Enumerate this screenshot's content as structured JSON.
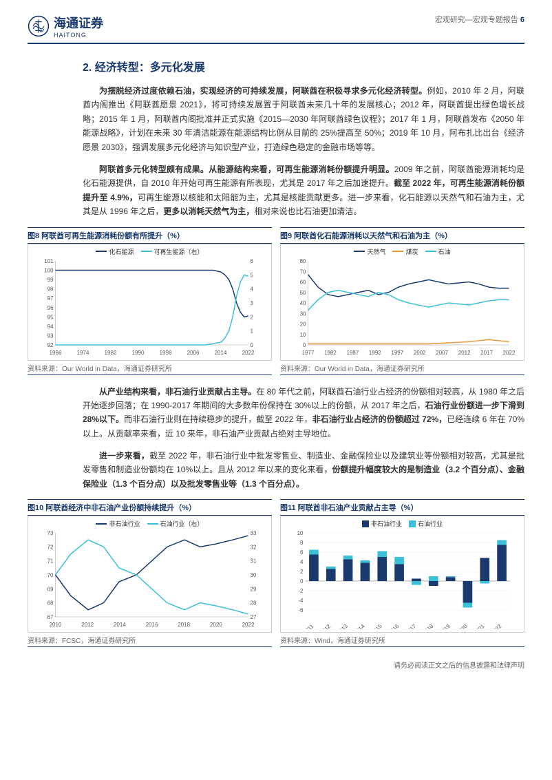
{
  "header": {
    "logo_text": "海通证券",
    "logo_sub": "HAITONG",
    "category": "宏观研究—宏观专题报告",
    "page_num": "6"
  },
  "heading2": "2. 经济转型：多元化发展",
  "para1_bold": "为摆脱经济过度依赖石油，实现经济的可持续发展，阿联酋在积极寻求多元化经济转型。",
  "para1_rest": "例如，2010 年 2 月，阿联酋内阁推出《阿联酋愿景 2021》，将可持续发展置于阿联酋未来几十年的发展核心；2012 年，阿联酋提出绿色增长战略；2015 年 1 月，阿联酋内阁批准并正式实施《2015—2030 年阿联酋绿色议程》；2017 年 1 月，阿联酋发布《2050 年能源战略》，计划在未来 30 年清洁能源在能源结构比例从目前的 25%提高至 50%；2019 年 10 月，阿布扎比出台《经济愿景 2030》，强调发展多元化经济与知识型产业，打造绿色稳定的金融市场等等。",
  "para2_bold1": "阿联酋多元化转型颇有成果。从能源结构来看，可再生能源消耗份额提升明显。",
  "para2_mid": "2009 年之前，阿联酋能源消耗均是化石能源提供，自 2010 年开始可再生能源有所表现，尤其是 2017 年之后加速提升。",
  "para2_bold2": "截至 2022 年，可再生能源消耗份额提升至 4.9%，",
  "para2_rest": "可再生能源以核能和太阳能为主，尤其是核能贡献更多。进一步来看，化石能源以天然气和石油为主，尤其是从 1996 年之后，",
  "para2_bold3": "更多以消耗天然气为主，",
  "para2_tail": "相对来说也比石油更加清洁。",
  "para3_bold": "从产业结构来看，非石油行业贡献占主导。",
  "para3_rest": "在 80 年代之前，阿联酋石油行业占经济的份额相对较高，从 1980 年之后开始逐步回落；在 1990-2017 年期间的大多数年份保持在 30%以上的份额，从 2017 年之后，",
  "para3_bold2": "石油行业份额进一步下滑到 28%以下。",
  "para3_rest2": "而非石油行业则在持续稳步的提升，截至 2022 年，",
  "para3_bold3": "非石油行业占经济的份额超过 72%，",
  "para3_tail": "已经连续 6 年在 70%以上。从贡献率来看，近 10 来年，非石油产业贡献占绝对主导地位。",
  "para4_bold": "进一步来看，",
  "para4_rest": "截至 2022 年，非石油行业中批发零售业、制造业、金融保险业以及建筑业等份额相对较高，尤其是批发零售和制造业份额均在 10%以上。且从 2012 年以来的变化来看，",
  "para4_bold2": "份额提升幅度较大的是制造业（3.2 个百分点）、金融保险业（1.3 个百分点）以及批发零售业等（1.3 个百分点）。",
  "chart8": {
    "title": "图8  阿联酋可再生能源消耗份额有所提升（%）",
    "legend": [
      {
        "label": "化石能源",
        "color": "#1a3a6e"
      },
      {
        "label": "可再生能源（右）",
        "color": "#3cc0d8"
      }
    ],
    "left_axis": {
      "min": 92,
      "max": 101,
      "step": 1
    },
    "right_axis": {
      "min": 0,
      "max": 6,
      "step": 1
    },
    "x_labels": [
      "1966",
      "1974",
      "1982",
      "1990",
      "1998",
      "2006",
      "2014",
      "2022"
    ],
    "series1": {
      "color": "#1a3a6e",
      "data": [
        [
          0,
          100
        ],
        [
          10,
          100
        ],
        [
          20,
          100
        ],
        [
          30,
          100
        ],
        [
          40,
          100
        ],
        [
          50,
          100
        ],
        [
          60,
          100
        ],
        [
          70,
          100
        ],
        [
          78,
          100
        ],
        [
          82,
          100
        ],
        [
          86,
          99.8
        ],
        [
          88,
          99.5
        ],
        [
          90,
          99
        ],
        [
          92,
          98
        ],
        [
          94,
          96.5
        ],
        [
          96,
          95.5
        ],
        [
          98,
          95
        ],
        [
          100,
          95.1
        ]
      ]
    },
    "series2": {
      "color": "#3cc0d8",
      "data": [
        [
          0,
          0
        ],
        [
          50,
          0
        ],
        [
          70,
          0
        ],
        [
          78,
          0
        ],
        [
          82,
          0.1
        ],
        [
          86,
          0.2
        ],
        [
          88,
          0.5
        ],
        [
          90,
          1
        ],
        [
          92,
          2
        ],
        [
          94,
          3.5
        ],
        [
          96,
          4.5
        ],
        [
          98,
          5
        ],
        [
          100,
          4.9
        ]
      ]
    },
    "source": "资料来源：Our World in Data，海通证券研究所"
  },
  "chart9": {
    "title": "图9  阿联酋化石能源消耗以天然气和石油为主（%）",
    "legend": [
      {
        "label": "天然气",
        "color": "#1a3a6e"
      },
      {
        "label": "煤炭",
        "color": "#e59a3d"
      },
      {
        "label": "石油",
        "color": "#3cc0d8"
      }
    ],
    "y_axis": {
      "min": 0,
      "max": 80,
      "step": 10
    },
    "x_labels": [
      "1977",
      "1982",
      "1987",
      "1992",
      "1997",
      "2002",
      "2007",
      "2012",
      "2017",
      "2022"
    ],
    "series_gas": {
      "color": "#1a3a6e",
      "data": [
        [
          0,
          67
        ],
        [
          5,
          55
        ],
        [
          10,
          48
        ],
        [
          15,
          46
        ],
        [
          20,
          48
        ],
        [
          25,
          50
        ],
        [
          30,
          52
        ],
        [
          35,
          48
        ],
        [
          40,
          50
        ],
        [
          45,
          55
        ],
        [
          50,
          58
        ],
        [
          55,
          60
        ],
        [
          60,
          62
        ],
        [
          65,
          60
        ],
        [
          70,
          58
        ],
        [
          75,
          59
        ],
        [
          80,
          60
        ],
        [
          85,
          58
        ],
        [
          90,
          55
        ],
        [
          95,
          54
        ],
        [
          100,
          54
        ]
      ]
    },
    "series_coal": {
      "color": "#e59a3d",
      "data": [
        [
          0,
          1
        ],
        [
          20,
          1
        ],
        [
          40,
          1
        ],
        [
          60,
          1
        ],
        [
          70,
          2
        ],
        [
          80,
          3
        ],
        [
          85,
          4
        ],
        [
          90,
          5
        ],
        [
          95,
          4
        ],
        [
          100,
          3
        ]
      ]
    },
    "series_oil": {
      "color": "#3cc0d8",
      "data": [
        [
          0,
          33
        ],
        [
          5,
          43
        ],
        [
          10,
          50
        ],
        [
          15,
          52
        ],
        [
          20,
          50
        ],
        [
          25,
          48
        ],
        [
          30,
          46
        ],
        [
          35,
          50
        ],
        [
          40,
          48
        ],
        [
          45,
          43
        ],
        [
          50,
          40
        ],
        [
          55,
          38
        ],
        [
          60,
          36
        ],
        [
          65,
          38
        ],
        [
          70,
          40
        ],
        [
          75,
          39
        ],
        [
          80,
          38
        ],
        [
          85,
          40
        ],
        [
          90,
          42
        ],
        [
          95,
          43
        ],
        [
          100,
          43
        ]
      ]
    },
    "source": "资料来源：Our World in Data，海通证券研究所"
  },
  "chart10": {
    "title": "图10 阿联酋经济中非石油产业份额持续提升（%）",
    "legend": [
      {
        "label": "非石油行业",
        "color": "#1a3a6e"
      },
      {
        "label": "石油行业（右）",
        "color": "#3cc0d8"
      }
    ],
    "left_axis": {
      "min": 67,
      "max": 73,
      "step": 1
    },
    "right_axis": {
      "min": 27,
      "max": 33,
      "step": 1
    },
    "x_labels": [
      "2010",
      "2012",
      "2014",
      "2016",
      "2018",
      "2020",
      "2022"
    ],
    "series1": {
      "color": "#1a3a6e",
      "data": [
        [
          0,
          70
        ],
        [
          8,
          68.5
        ],
        [
          17,
          67.5
        ],
        [
          25,
          68
        ],
        [
          33,
          69.5
        ],
        [
          42,
          70
        ],
        [
          50,
          71
        ],
        [
          58,
          72
        ],
        [
          67,
          72.5
        ],
        [
          75,
          72
        ],
        [
          83,
          72.2
        ],
        [
          92,
          72.5
        ],
        [
          100,
          72.8
        ]
      ]
    },
    "series2": {
      "color": "#3cc0d8",
      "data": [
        [
          0,
          30
        ],
        [
          8,
          31.5
        ],
        [
          17,
          32.5
        ],
        [
          25,
          32
        ],
        [
          33,
          30.5
        ],
        [
          42,
          30
        ],
        [
          50,
          29
        ],
        [
          58,
          28
        ],
        [
          67,
          27.5
        ],
        [
          75,
          28
        ],
        [
          83,
          27.8
        ],
        [
          92,
          27.5
        ],
        [
          100,
          27.2
        ]
      ]
    },
    "source": "资料来源：FCSC，海通证券研究所"
  },
  "chart11": {
    "title": "图11 阿联酋非石油产业贡献占主导（%）",
    "legend": [
      {
        "label": "非石油行业",
        "color": "#1a3a6e"
      },
      {
        "label": "石油行业",
        "color": "#3cc0d8"
      }
    ],
    "y_axis": {
      "min": -6,
      "max": 10,
      "step": 2
    },
    "x_labels": [
      "2011",
      "2012",
      "2013",
      "2014",
      "2015",
      "2016",
      "2017",
      "2018",
      "2019",
      "2020",
      "2021",
      "2022"
    ],
    "bars": [
      {
        "non_oil": 5.5,
        "oil": 1.0
      },
      {
        "non_oil": 2.5,
        "oil": 0.5
      },
      {
        "non_oil": 4.5,
        "oil": 0.8
      },
      {
        "non_oil": 3.8,
        "oil": 0.5
      },
      {
        "non_oil": 5.0,
        "oil": 1.2
      },
      {
        "non_oil": 3.5,
        "oil": 1.5
      },
      {
        "non_oil": 0.5,
        "oil": -0.8
      },
      {
        "non_oil": -1.0,
        "oil": 1.0
      },
      {
        "non_oil": 0.8,
        "oil": 0.2
      },
      {
        "non_oil": -4.5,
        "oil": -1.0
      },
      {
        "non_oil": 4.8,
        "oil": -0.5
      },
      {
        "non_oil": 7.5,
        "oil": 1.0
      }
    ],
    "colors": {
      "non_oil": "#1a3a6e",
      "oil": "#3cc0d8"
    },
    "source": "资料来源：Wind，海通证券研究所"
  },
  "footer": "请务必阅读正文之后的信息披露和法律声明"
}
